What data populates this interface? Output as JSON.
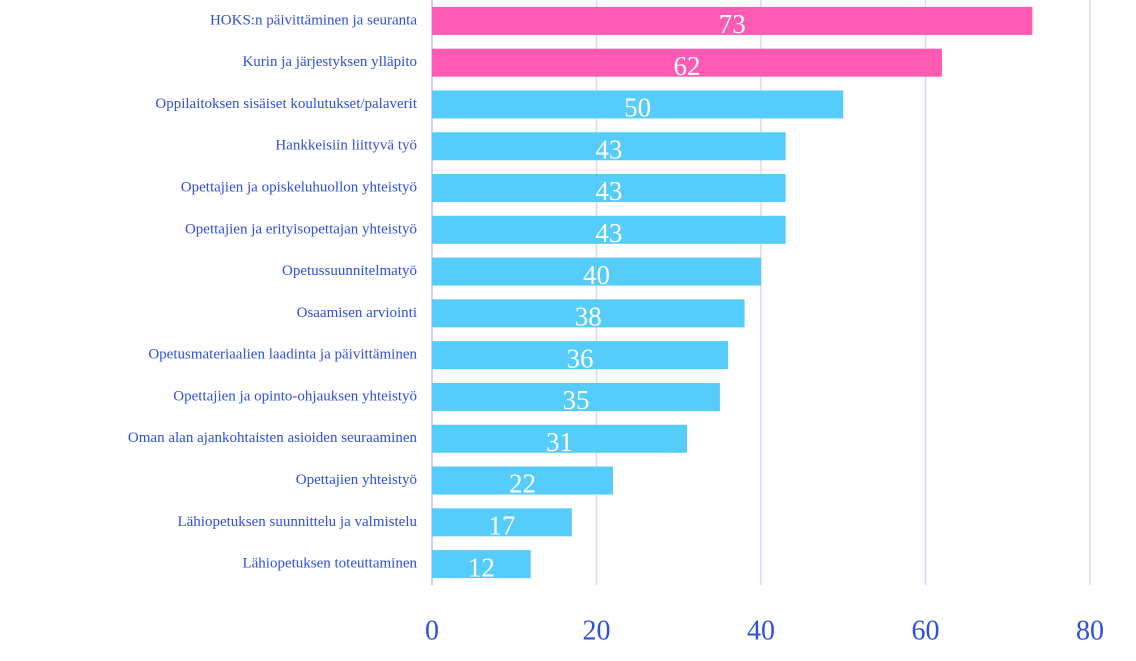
{
  "chart_data": {
    "type": "hbar",
    "categories": [
      "HOKS:n päivittäminen ja seuranta",
      "Kurin ja järjestyksen ylläpito",
      "Oppilaitoksen sisäiset koulutukset/palaverit",
      "Hankkeisiin liittyvä työ",
      "Opettajien ja opiskeluhuollon yhteistyö",
      "Opettajien ja erityisopettajan yhteistyö",
      "Opetussuunnitelmatyö",
      "Osaamisen arviointi",
      "Opetusmateriaalien laadinta ja päivittäminen",
      "Opettajien ja opinto-ohjauksen yhteistyö",
      "Oman alan ajankohtaisten asioiden seuraaminen",
      "Opettajien yhteistyö",
      "Lähiopetuksen suunnittelu ja valmistelu",
      "Lähiopetuksen toteuttaminen"
    ],
    "values": [
      73,
      62,
      50,
      43,
      43,
      43,
      40,
      38,
      36,
      35,
      31,
      22,
      17,
      12
    ],
    "colors": [
      "#ff5ab4",
      "#ff5ab4",
      "#55ccfa",
      "#55ccfa",
      "#55ccfa",
      "#55ccfa",
      "#55ccfa",
      "#55ccfa",
      "#55ccfa",
      "#55ccfa",
      "#55ccfa",
      "#55ccfa",
      "#55ccfa",
      "#55ccfa"
    ],
    "xlim": [
      0,
      80
    ],
    "xticks": [
      0,
      20,
      40,
      60,
      80
    ],
    "grid": true
  }
}
